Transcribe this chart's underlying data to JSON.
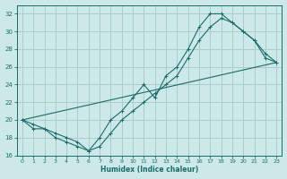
{
  "xlabel": "Humidex (Indice chaleur)",
  "background_color": "#cce8e8",
  "grid_color": "#aacccc",
  "line_color": "#1a6b6b",
  "xlim": [
    -0.5,
    23.5
  ],
  "ylim": [
    16,
    33
  ],
  "xticks": [
    0,
    1,
    2,
    3,
    4,
    5,
    6,
    7,
    8,
    9,
    10,
    11,
    12,
    13,
    14,
    15,
    16,
    17,
    18,
    19,
    20,
    21,
    22,
    23
  ],
  "yticks": [
    16,
    18,
    20,
    22,
    24,
    26,
    28,
    30,
    32
  ],
  "line1_x": [
    0,
    1,
    2,
    3,
    4,
    5,
    6,
    7,
    8,
    9,
    10,
    11,
    12,
    13,
    14,
    15,
    16,
    17,
    18,
    19,
    20,
    21,
    22,
    23
  ],
  "line1_y": [
    20,
    19,
    19,
    18,
    17.5,
    17,
    16.5,
    17,
    18.5,
    20,
    21,
    22,
    23,
    24,
    25,
    27,
    29,
    30.5,
    31.5,
    31,
    30,
    29,
    27.5,
    26.5
  ],
  "line2_x": [
    0,
    1,
    2,
    3,
    4,
    5,
    6,
    7,
    8,
    9,
    10,
    11,
    12,
    13,
    14,
    15,
    16,
    17,
    18,
    19,
    20,
    21,
    22,
    23
  ],
  "line2_y": [
    20,
    19.5,
    19,
    18.5,
    18,
    17.5,
    16.5,
    18,
    20,
    21,
    22.5,
    24,
    22.5,
    25,
    26,
    28,
    30.5,
    32,
    32,
    31,
    30,
    29,
    27,
    26.5
  ],
  "line3_x": [
    0,
    23
  ],
  "line3_y": [
    20,
    26.5
  ]
}
